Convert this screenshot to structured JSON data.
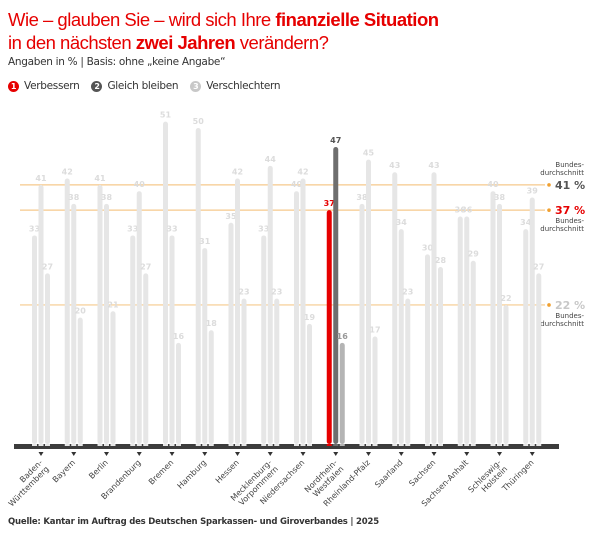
{
  "header": {
    "title_parts": [
      {
        "text": "Wie – glauben Sie – wird sich Ihre ",
        "bold": false
      },
      {
        "text": "finanzielle Situation",
        "bold": true
      },
      {
        "text": "\nin den nächsten ",
        "bold": false
      },
      {
        "text": "zwei Jahren",
        "bold": true
      },
      {
        "text": " verändern?",
        "bold": false
      }
    ],
    "subtitle": "Angaben in % | Basis: ohne „keine Angabe“"
  },
  "legend": [
    {
      "num": "1",
      "label": "Verbessern",
      "color": "#e60000"
    },
    {
      "num": "2",
      "label": "Gleich bleiben",
      "color": "#555555"
    },
    {
      "num": "3",
      "label": "Verschlechtern",
      "color": "#c8c8c8"
    }
  ],
  "source": "Quelle: Kantar im Auftrag des Deutschen Sparkassen- und Giroverbandes | 2025",
  "colors": {
    "accent": "#e60000",
    "bar_default": "#e6e6e6",
    "label_default": "#dcdcdc",
    "highlight_1": "#e60000",
    "highlight_2": "#6e6e6e",
    "highlight_3": "#b4b4b4",
    "reference_line": "#f5c98c",
    "reference_dot": "#f0a030",
    "baseline": "#3c3c3c"
  },
  "chart_data": {
    "type": "bar",
    "title": "Wie – glauben Sie – wird sich Ihre finanzielle Situation in den nächsten zwei Jahren verändern?",
    "subtitle": "Angaben in % | Basis: ohne „keine Angabe“",
    "xlabel": "",
    "ylabel": "",
    "ylim": [
      0,
      51
    ],
    "grid": false,
    "legend_position": "top-left",
    "highlighted_category": "Nordrhein-Westfalen",
    "categories": [
      "Baden-Württemberg",
      "Bayern",
      "Berlin",
      "Brandenburg",
      "Bremen",
      "Hamburg",
      "Hessen",
      "Mecklenburg-Vorpommern",
      "Niedersachsen",
      "Nordrhein-Westfalen",
      "Rheinland-Pfalz",
      "Saarland",
      "Sachsen",
      "Sachsen-Anhalt",
      "Schleswig-Holstein",
      "Thüringen"
    ],
    "category_labels": [
      [
        "Baden-",
        "Württemberg"
      ],
      [
        "Bayern"
      ],
      [
        "Berlin"
      ],
      [
        "Brandenburg"
      ],
      [
        "Bremen"
      ],
      [
        "Hamburg"
      ],
      [
        "Hessen"
      ],
      [
        "Mecklenburg-",
        "Vorpommern"
      ],
      [
        "Niedersachsen"
      ],
      [
        "Nordrhein-",
        "Westfalen"
      ],
      [
        "Rheinland-Pfalz"
      ],
      [
        "Saarland"
      ],
      [
        "Sachsen"
      ],
      [
        "Sachsen-Anhalt"
      ],
      [
        "Schleswig-",
        "Holstein"
      ],
      [
        "Thüringen"
      ]
    ],
    "series": [
      {
        "name": "Verbessern",
        "values": [
          33,
          42,
          41,
          33,
          51,
          50,
          35,
          33,
          40,
          37,
          38,
          43,
          30,
          36,
          40,
          34
        ]
      },
      {
        "name": "Gleich bleiben",
        "values": [
          41,
          38,
          38,
          40,
          33,
          31,
          42,
          44,
          42,
          47,
          45,
          34,
          43,
          36,
          38,
          39
        ]
      },
      {
        "name": "Verschlechtern",
        "values": [
          27,
          20,
          21,
          27,
          16,
          18,
          23,
          23,
          19,
          16,
          17,
          23,
          28,
          29,
          22,
          27
        ]
      }
    ],
    "reference_lines": [
      {
        "value": 41,
        "label": "41 %",
        "caption": "Bundes-\ndurchschnitt",
        "caption_position": "above",
        "color": "#555555"
      },
      {
        "value": 37,
        "label": "37 %",
        "caption": "Bundes-\ndurchschnitt",
        "caption_position": "below",
        "color": "#e60000"
      },
      {
        "value": 22,
        "label": "22 %",
        "caption": "Bundes-\ndurchschnitt",
        "caption_position": "below",
        "color": "#c8c8c8"
      }
    ]
  }
}
